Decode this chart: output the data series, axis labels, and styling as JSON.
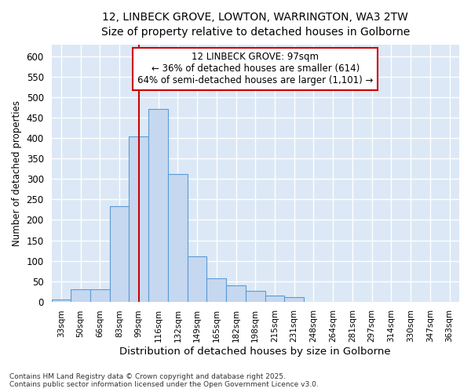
{
  "title1": "12, LINBECK GROVE, LOWTON, WARRINGTON, WA3 2TW",
  "title2": "Size of property relative to detached houses in Golborne",
  "xlabel": "Distribution of detached houses by size in Golborne",
  "ylabel": "Number of detached properties",
  "footnote": "Contains HM Land Registry data © Crown copyright and database right 2025.\nContains public sector information licensed under the Open Government Licence v3.0.",
  "categories": [
    "33sqm",
    "50sqm",
    "66sqm",
    "83sqm",
    "99sqm",
    "116sqm",
    "132sqm",
    "149sqm",
    "165sqm",
    "182sqm",
    "198sqm",
    "215sqm",
    "231sqm",
    "248sqm",
    "264sqm",
    "281sqm",
    "297sqm",
    "314sqm",
    "330sqm",
    "347sqm",
    "363sqm"
  ],
  "values": [
    5,
    30,
    30,
    233,
    405,
    472,
    313,
    110,
    57,
    40,
    27,
    15,
    10,
    0,
    0,
    0,
    0,
    0,
    0,
    0,
    0
  ],
  "bar_color": "#c5d8f0",
  "bar_edge_color": "#5b9bd5",
  "bg_color": "#dce8f5",
  "grid_color": "#ffffff",
  "vline_x": 4,
  "vline_color": "#cc0000",
  "annotation_text": "12 LINBECK GROVE: 97sqm\n← 36% of detached houses are smaller (614)\n64% of semi-detached houses are larger (1,101) →",
  "annotation_box_color": "#ffffff",
  "annotation_box_edge": "#cc0000",
  "ylim": [
    0,
    630
  ],
  "yticks": [
    0,
    50,
    100,
    150,
    200,
    250,
    300,
    350,
    400,
    450,
    500,
    550,
    600
  ]
}
